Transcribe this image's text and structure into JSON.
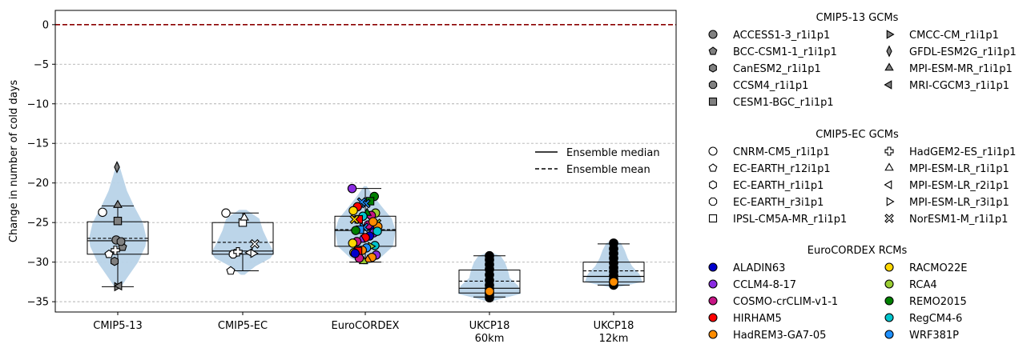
{
  "chart_data": {
    "type": "violin-box-scatter",
    "ylabel": "Change in number of cold days",
    "ylim": [
      -36.3,
      1.8
    ],
    "yticks": [
      0,
      -5,
      -10,
      -15,
      -20,
      -25,
      -30,
      -35
    ],
    "grid": "horizontal dashed",
    "reference_line": {
      "y": 0,
      "color": "#8b0000",
      "style": "dashed"
    },
    "categories": [
      {
        "label": "CMIP5-13",
        "label2": "",
        "box": {
          "q1": -29.0,
          "median": -27.3,
          "mean": -27.0,
          "q3": -24.9,
          "whisker_low": -33.1,
          "whisker_high": -22.9
        },
        "violin": {
          "min": -33.4,
          "max": -17.4,
          "profile": [
            [
              -33.4,
              0.05
            ],
            [
              -32,
              0.25
            ],
            [
              -30,
              0.55
            ],
            [
              -28,
              0.75
            ],
            [
              -27,
              0.78
            ],
            [
              -25,
              0.68
            ],
            [
              -23,
              0.45
            ],
            [
              -21,
              0.25
            ],
            [
              -19,
              0.12
            ],
            [
              -17.4,
              0.02
            ]
          ]
        }
      },
      {
        "label": "CMIP5-EC",
        "label2": "",
        "box": {
          "q1": -29.0,
          "median": -28.6,
          "mean": -27.5,
          "q3": -25.0,
          "whisker_low": -31.1,
          "whisker_high": -23.8
        },
        "violin": {
          "min": -31.6,
          "max": -23.4,
          "profile": [
            [
              -31.6,
              0.05
            ],
            [
              -30.5,
              0.35
            ],
            [
              -29.5,
              0.75
            ],
            [
              -28.8,
              0.85
            ],
            [
              -27.5,
              0.7
            ],
            [
              -26,
              0.55
            ],
            [
              -24.5,
              0.45
            ],
            [
              -23.4,
              0.1
            ]
          ]
        }
      },
      {
        "label": "EuroCORDEX",
        "label2": "",
        "box": {
          "q1": -28.0,
          "median": -26.0,
          "mean": -25.9,
          "q3": -24.2,
          "whisker_low": -30.0,
          "whisker_high": -20.7
        },
        "violin": {
          "min": -30.3,
          "max": -20.4,
          "profile": [
            [
              -30.3,
              0.05
            ],
            [
              -29.5,
              0.4
            ],
            [
              -28,
              0.75
            ],
            [
              -26,
              0.82
            ],
            [
              -24.5,
              0.72
            ],
            [
              -23,
              0.45
            ],
            [
              -21.5,
              0.2
            ],
            [
              -20.4,
              0.04
            ]
          ]
        }
      },
      {
        "label": "UKCP18",
        "label2": "60km",
        "box": {
          "q1": -33.9,
          "median": -33.3,
          "mean": -32.4,
          "q3": -31.0,
          "whisker_low": -34.4,
          "whisker_high": -29.2
        },
        "violin": {
          "min": -34.9,
          "max": -28.8,
          "profile": [
            [
              -34.9,
              0.1
            ],
            [
              -34,
              0.85
            ],
            [
              -33,
              0.78
            ],
            [
              -32,
              0.55
            ],
            [
              -31,
              0.5
            ],
            [
              -30,
              0.42
            ],
            [
              -29.2,
              0.3
            ],
            [
              -28.8,
              0.05
            ]
          ]
        }
      },
      {
        "label": "UKCP18",
        "label2": "12km",
        "box": {
          "q1": -32.5,
          "median": -31.8,
          "mean": -31.1,
          "q3": -30.0,
          "whisker_low": -32.9,
          "whisker_high": -27.7
        },
        "violin": {
          "min": -33.2,
          "max": -27.3,
          "profile": [
            [
              -33.2,
              0.1
            ],
            [
              -32.5,
              0.78
            ],
            [
              -31.5,
              0.7
            ],
            [
              -30.5,
              0.5
            ],
            [
              -29.5,
              0.38
            ],
            [
              -28.5,
              0.3
            ],
            [
              -27.6,
              0.2
            ],
            [
              -27.3,
              0.04
            ]
          ]
        }
      }
    ],
    "gcm_points": [
      {
        "cat": 0,
        "model": "ACCESS1-3_r1i1p1",
        "value": -27.2
      },
      {
        "cat": 0,
        "model": "BCC-CSM1-1_r1i1p1",
        "value": -28.1
      },
      {
        "cat": 0,
        "model": "CanESM2_r1i1p1",
        "value": -29.9
      },
      {
        "cat": 0,
        "model": "CCSM4_r1i1p1",
        "value": -27.4
      },
      {
        "cat": 0,
        "model": "CESM1-BGC_r1i1p1",
        "value": -24.8
      },
      {
        "cat": 0,
        "model": "CMCC-CM_r1i1p1",
        "value": -33.1
      },
      {
        "cat": 0,
        "model": "GFDL-ESM2G_r1i1p1",
        "value": -18.0
      },
      {
        "cat": 0,
        "model": "MPI-ESM-MR_r1i1p1",
        "value": -22.8
      },
      {
        "cat": 0,
        "model": "MRI-CGCM3_r1i1p1",
        "value": -33.0
      },
      {
        "cat": 0,
        "model": "CNRM-CM5_r1i1p1",
        "value": -23.7
      },
      {
        "cat": 0,
        "model": "EC-EARTH_r12i1p1",
        "value": -29.0
      },
      {
        "cat": 0,
        "model": "HadGEM2-ES_r1i1p1",
        "value": -28.5
      },
      {
        "cat": 1,
        "model": "CNRM-CM5_r1i1p1",
        "value": -23.8
      },
      {
        "cat": 1,
        "model": "EC-EARTH_r12i1p1",
        "value": -31.1
      },
      {
        "cat": 1,
        "model": "EC-EARTH_r1i1p1",
        "value": -28.9
      },
      {
        "cat": 1,
        "model": "EC-EARTH_r3i1p1",
        "value": -29.0
      },
      {
        "cat": 1,
        "model": "IPSL-CM5A-MR_r1i1p1",
        "value": -25.0
      },
      {
        "cat": 1,
        "model": "HadGEM2-ES_r1i1p1",
        "value": -28.7
      },
      {
        "cat": 1,
        "model": "MPI-ESM-LR_r1i1p1",
        "value": -24.4
      },
      {
        "cat": 1,
        "model": "MPI-ESM-LR_r2i1p1",
        "value": -28.8
      },
      {
        "cat": 1,
        "model": "MPI-ESM-LR_r3i1p1",
        "value": -28.9
      },
      {
        "cat": 1,
        "model": "NorESM1-M_r1i1p1",
        "value": -27.7
      }
    ],
    "rcm_points": [
      [
        -20.7,
        "#8a2be2",
        "o"
      ],
      [
        -21.7,
        "#008000",
        "o"
      ],
      [
        -22.3,
        "#008000",
        "s"
      ],
      [
        -22.6,
        "#1e90ff",
        "X"
      ],
      [
        -22.4,
        "#1e90ff",
        "X"
      ],
      [
        -23.0,
        "#ff0000",
        "o"
      ],
      [
        -23.5,
        "#ffd700",
        "o"
      ],
      [
        -23.8,
        "#9acd32",
        "o"
      ],
      [
        -24.1,
        "#c71585",
        "o"
      ],
      [
        -23.8,
        "#008000",
        "^"
      ],
      [
        -24.2,
        "#00c5cd",
        "o"
      ],
      [
        -24.6,
        "#ff0000",
        "s"
      ],
      [
        -24.6,
        "#ffd700",
        "X"
      ],
      [
        -25.1,
        "#9acd32",
        "X"
      ],
      [
        -25.5,
        "#0000cd",
        "o"
      ],
      [
        -25.3,
        "#c71585",
        "o"
      ],
      [
        -25.6,
        "#1e90ff",
        "X"
      ],
      [
        -25.9,
        "#1e90ff",
        "s"
      ],
      [
        -26.0,
        "#008000",
        "o"
      ],
      [
        -25.5,
        "#ff8c00",
        "o"
      ],
      [
        -26.3,
        "#8a2be2",
        "o"
      ],
      [
        -26.7,
        "#0000cd",
        "o"
      ],
      [
        -26.9,
        "#ff0000",
        "o"
      ],
      [
        -27.2,
        "#8a2be2",
        "^"
      ],
      [
        -27.4,
        "#c71585",
        "o"
      ],
      [
        -27.6,
        "#ffd700",
        "o"
      ],
      [
        -27.9,
        "#00c5cd",
        "o"
      ],
      [
        -28.0,
        "#9acd32",
        ">"
      ],
      [
        -28.2,
        "#1e90ff",
        "o"
      ],
      [
        -28.5,
        "#ff8c00",
        "o"
      ],
      [
        -28.6,
        "#ff0000",
        "s"
      ],
      [
        -28.8,
        "#ffd700",
        "o"
      ],
      [
        -29.1,
        "#8a2be2",
        "o"
      ],
      [
        -29.4,
        "#ff8c00",
        "o"
      ],
      [
        -29.7,
        "#ff8c00",
        "^"
      ],
      [
        -29.9,
        "#9acd32",
        "^"
      ],
      [
        -29.5,
        "#c71585",
        "o"
      ],
      [
        -28.9,
        "#0000cd",
        "o"
      ],
      [
        -26.1,
        "#00c5cd",
        "o"
      ],
      [
        -24.9,
        "#ff8c00",
        "o"
      ]
    ],
    "ukcp_points": [
      {
        "cat": 3,
        "values": [
          -29.2,
          -29.7,
          -30.3,
          -30.9,
          -31.6,
          -32.3,
          -32.9,
          -33.4,
          -33.8,
          -34.1,
          -34.5
        ],
        "orange": -33.7
      },
      {
        "cat": 4,
        "values": [
          -27.6,
          -28.3,
          -28.9,
          -29.5,
          -30.1,
          -30.7,
          -31.2,
          -31.7,
          -32.2,
          -32.6,
          -32.9
        ],
        "orange": -32.5
      }
    ],
    "inner_legend": {
      "median": "Ensemble median",
      "mean": "Ensemble mean"
    },
    "legend": {
      "placement": "right",
      "groups": [
        {
          "title": "CMIP5-13 GCMs",
          "entries": [
            {
              "label": "ACCESS1-3_r1i1p1",
              "marker": "o",
              "fill": "#808080"
            },
            {
              "label": "BCC-CSM1-1_r1i1p1",
              "marker": "p",
              "fill": "#808080"
            },
            {
              "label": "CanESM2_r1i1p1",
              "marker": "h",
              "fill": "#808080"
            },
            {
              "label": "CCSM4_r1i1p1",
              "marker": "8",
              "fill": "#808080"
            },
            {
              "label": "CESM1-BGC_r1i1p1",
              "marker": "s",
              "fill": "#808080"
            },
            {
              "label": "CMCC-CM_r1i1p1",
              "marker": ">",
              "fill": "#808080"
            },
            {
              "label": "GFDL-ESM2G_r1i1p1",
              "marker": "d",
              "fill": "#808080"
            },
            {
              "label": "MPI-ESM-MR_r1i1p1",
              "marker": "^",
              "fill": "#808080"
            },
            {
              "label": "MRI-CGCM3_r1i1p1",
              "marker": "<",
              "fill": "#808080"
            }
          ]
        },
        {
          "title": "CMIP5-EC GCMs",
          "entries": [
            {
              "label": "CNRM-CM5_r1i1p1",
              "marker": "o",
              "fill": "#ffffff"
            },
            {
              "label": "EC-EARTH_r12i1p1",
              "marker": "p",
              "fill": "#ffffff"
            },
            {
              "label": "EC-EARTH_r1i1p1",
              "marker": "h",
              "fill": "#ffffff"
            },
            {
              "label": "EC-EARTH_r3i1p1",
              "marker": "8",
              "fill": "#ffffff"
            },
            {
              "label": "IPSL-CM5A-MR_r1i1p1",
              "marker": "s",
              "fill": "#ffffff"
            },
            {
              "label": "HadGEM2-ES_r1i1p1",
              "marker": "P",
              "fill": "#ffffff"
            },
            {
              "label": "MPI-ESM-LR_r1i1p1",
              "marker": "^",
              "fill": "#ffffff"
            },
            {
              "label": "MPI-ESM-LR_r2i1p1",
              "marker": "<",
              "fill": "#ffffff"
            },
            {
              "label": "MPI-ESM-LR_r3i1p1",
              "marker": ">",
              "fill": "#ffffff"
            },
            {
              "label": "NorESM1-M_r1i1p1",
              "marker": "X",
              "fill": "#ffffff"
            }
          ]
        },
        {
          "title": "EuroCORDEX RCMs",
          "entries": [
            {
              "label": "ALADIN63",
              "marker": "o",
              "fill": "#0000cd"
            },
            {
              "label": "CCLM4-8-17",
              "marker": "o",
              "fill": "#8a2be2"
            },
            {
              "label": "COSMO-crCLIM-v1-1",
              "marker": "o",
              "fill": "#c71585"
            },
            {
              "label": "HIRHAM5",
              "marker": "o",
              "fill": "#ff0000"
            },
            {
              "label": "HadREM3-GA7-05",
              "marker": "o",
              "fill": "#ff8c00"
            },
            {
              "label": "RACMO22E",
              "marker": "o",
              "fill": "#ffd700"
            },
            {
              "label": "RCA4",
              "marker": "o",
              "fill": "#9acd32"
            },
            {
              "label": "REMO2015",
              "marker": "o",
              "fill": "#008000"
            },
            {
              "label": "RegCM4-6",
              "marker": "o",
              "fill": "#00c5cd"
            },
            {
              "label": "WRF381P",
              "marker": "o",
              "fill": "#1e90ff"
            }
          ]
        }
      ]
    },
    "colors": {
      "violin": "#b8d3e8",
      "reference": "#8b0000",
      "grid": "#b0b0b0",
      "ukcp_point": "#000000",
      "ukcp_highlight": "#ff8c00"
    }
  }
}
